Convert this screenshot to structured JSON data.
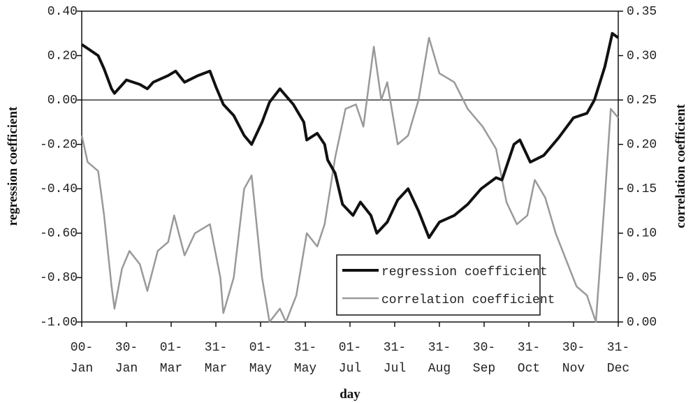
{
  "chart_data": {
    "type": "line",
    "xlabel": "day",
    "ylabel": "regression coefficient",
    "y2label": "correlation coefficient",
    "xlim": [
      0,
      360
    ],
    "xticks": [
      {
        "value": 0,
        "label": "00-\nJan"
      },
      {
        "value": 30,
        "label": "30-\nJan"
      },
      {
        "value": 60,
        "label": "01-\nMar"
      },
      {
        "value": 90,
        "label": "31-\nMar"
      },
      {
        "value": 120,
        "label": "01-\nMay"
      },
      {
        "value": 150,
        "label": "31-\nMay"
      },
      {
        "value": 180,
        "label": "01-\nJul"
      },
      {
        "value": 210,
        "label": "31-\nJul"
      },
      {
        "value": 240,
        "label": "31-\nAug"
      },
      {
        "value": 270,
        "label": "30-\nSep"
      },
      {
        "value": 300,
        "label": "31-\nOct"
      },
      {
        "value": 330,
        "label": "30-\nNov"
      },
      {
        "value": 360,
        "label": "31-\nDec"
      }
    ],
    "ylim": [
      -1.0,
      0.4
    ],
    "yticks": [
      {
        "value": 0.4,
        "label": "0.40"
      },
      {
        "value": 0.2,
        "label": "0.20"
      },
      {
        "value": 0.0,
        "label": "0.00"
      },
      {
        "value": -0.2,
        "label": "-0.20"
      },
      {
        "value": -0.4,
        "label": "-0.40"
      },
      {
        "value": -0.6,
        "label": "-0.60"
      },
      {
        "value": -0.8,
        "label": "-0.80"
      },
      {
        "value": -1.0,
        "label": "-1.00"
      }
    ],
    "y2lim": [
      0,
      0.35
    ],
    "y2ticks": [
      0.35,
      {
        "value": 0.3,
        "label": "0.30"
      },
      0.25,
      {
        "value": 0.2,
        "label": "0.20"
      },
      0.15,
      {
        "value": 0.1,
        "label": "0.10"
      },
      0.05,
      {
        "value": 0.0,
        "label": "0.00"
      }
    ],
    "zero_line": true,
    "series": [
      {
        "name": "regression coefficient",
        "color": "#111111",
        "axis": "y",
        "x": [
          0,
          11,
          15,
          20,
          22,
          30,
          39,
          44,
          48,
          58,
          63,
          69,
          78,
          86,
          90,
          95,
          102,
          109,
          114,
          121,
          126,
          133,
          142,
          149,
          151,
          158,
          163,
          165,
          170,
          175,
          182,
          187,
          194,
          198,
          205,
          212,
          219,
          226,
          233,
          240,
          250,
          259,
          268,
          278,
          282,
          290,
          294,
          301,
          310,
          320,
          330,
          339,
          344,
          351,
          356,
          360
        ],
        "values": [
          0.25,
          0.2,
          0.14,
          0.05,
          0.03,
          0.09,
          0.07,
          0.05,
          0.08,
          0.11,
          0.13,
          0.08,
          0.11,
          0.13,
          0.06,
          -0.02,
          -0.07,
          -0.16,
          -0.2,
          -0.1,
          -0.01,
          0.05,
          -0.02,
          -0.1,
          -0.18,
          -0.15,
          -0.2,
          -0.27,
          -0.33,
          -0.47,
          -0.52,
          -0.46,
          -0.52,
          -0.6,
          -0.55,
          -0.45,
          -0.4,
          -0.5,
          -0.62,
          -0.55,
          -0.52,
          -0.47,
          -0.4,
          -0.35,
          -0.36,
          -0.2,
          -0.18,
          -0.28,
          -0.25,
          -0.17,
          -0.08,
          -0.06,
          0.0,
          0.15,
          0.3,
          0.28
        ]
      },
      {
        "name": "correlation coefficient",
        "color": "#999999",
        "axis": "y2",
        "x": [
          0,
          4,
          11,
          15,
          20,
          22,
          27,
          32,
          39,
          44,
          51,
          58,
          62,
          69,
          76,
          86,
          93,
          95,
          102,
          109,
          114,
          121,
          126,
          133,
          137,
          144,
          151,
          158,
          163,
          170,
          177,
          184,
          189,
          196,
          201,
          205,
          212,
          219,
          226,
          233,
          240,
          250,
          259,
          269,
          278,
          285,
          292,
          299,
          304,
          311,
          318,
          325,
          332,
          339,
          345,
          351,
          355,
          360
        ],
        "values": [
          0.21,
          0.18,
          0.17,
          0.12,
          0.04,
          0.015,
          0.06,
          0.08,
          0.065,
          0.035,
          0.08,
          0.09,
          0.12,
          0.075,
          0.1,
          0.11,
          0.05,
          0.01,
          0.05,
          0.15,
          0.165,
          0.05,
          0.0,
          0.015,
          0.0,
          0.03,
          0.1,
          0.085,
          0.11,
          0.185,
          0.24,
          0.245,
          0.22,
          0.31,
          0.25,
          0.27,
          0.2,
          0.21,
          0.25,
          0.32,
          0.28,
          0.27,
          0.24,
          0.22,
          0.195,
          0.135,
          0.11,
          0.12,
          0.16,
          0.14,
          0.1,
          0.07,
          0.04,
          0.03,
          0.0,
          0.14,
          0.24,
          0.23
        ]
      }
    ]
  }
}
